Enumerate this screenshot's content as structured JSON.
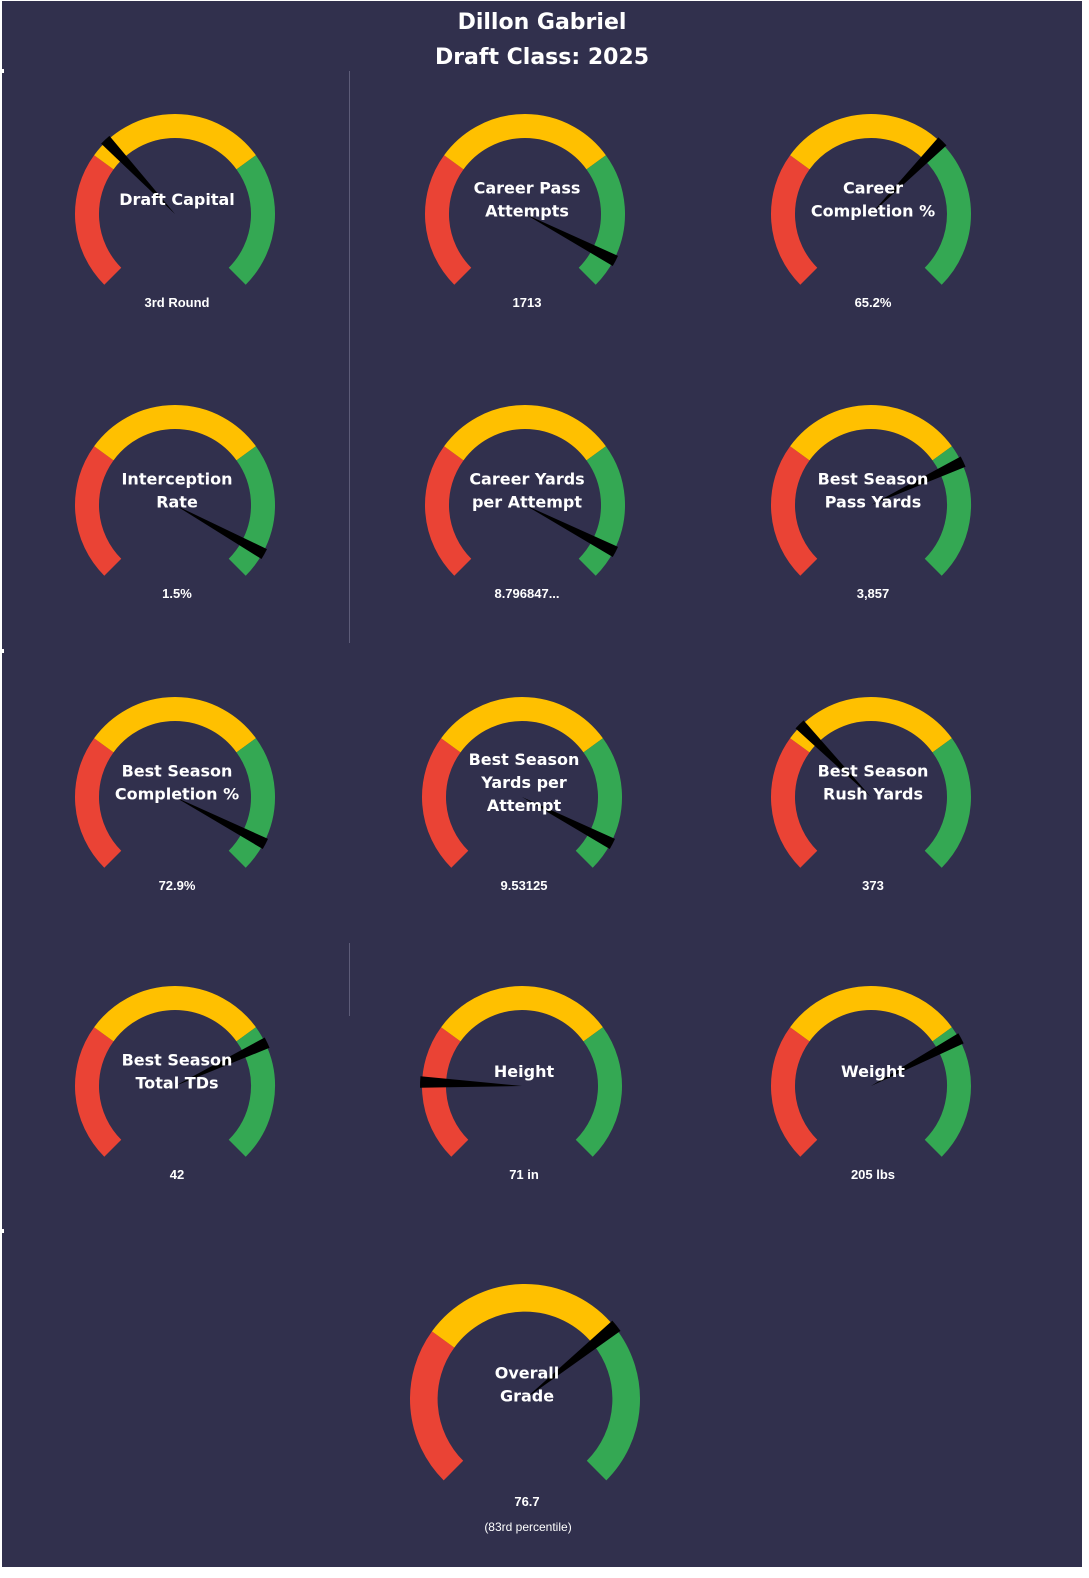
{
  "header": {
    "name": "Dillon Gabriel",
    "draft_class": "Draft Class: 2025"
  },
  "colors": {
    "background": "#31304d",
    "low": "#ea4335",
    "mid": "#ffc000",
    "high": "#34a853",
    "needle": "#000000",
    "text": "#ffffff"
  },
  "chart_data": [
    {
      "type": "gauge",
      "id": "draft-capital",
      "label_lines": [
        "Draft Capital"
      ],
      "value_label": "3rd Round",
      "value_fraction": 0.34,
      "bands": [
        0.3,
        0.7,
        1.0
      ]
    },
    {
      "type": "gauge",
      "id": "career-pass-attempts",
      "label_lines": [
        "Career Pass",
        "Attempts"
      ],
      "value_label": "1713",
      "value_fraction": 0.935,
      "bands": [
        0.3,
        0.7,
        0.935,
        1.0
      ]
    },
    {
      "type": "gauge",
      "id": "career-completion-pct",
      "label_lines": [
        "Career",
        "Completion %"
      ],
      "value_label": "65.2%",
      "value_fraction": 0.665,
      "bands": [
        0.3,
        0.665,
        1.0
      ]
    },
    {
      "type": "gauge",
      "id": "interception-rate",
      "label_lines": [
        "Interception",
        "Rate"
      ],
      "value_label": "1.5%",
      "value_fraction": 0.94,
      "bands": [
        0.3,
        0.7,
        0.94,
        1.0
      ]
    },
    {
      "type": "gauge",
      "id": "career-yards-per-attempt",
      "label_lines": [
        "Career Yards",
        "per Attempt"
      ],
      "value_label": "8.796847...",
      "value_fraction": 0.935,
      "bands": [
        0.3,
        0.7,
        0.935,
        1.0
      ]
    },
    {
      "type": "gauge",
      "id": "best-season-pass-yards",
      "label_lines": [
        "Best Season",
        "Pass Yards"
      ],
      "value_label": "3,857",
      "value_fraction": 0.74,
      "bands": [
        0.3,
        0.7,
        0.74,
        1.0
      ]
    },
    {
      "type": "gauge",
      "id": "best-season-completion-pct",
      "label_lines": [
        "Best Season",
        "Completion %"
      ],
      "value_label": "72.9%",
      "value_fraction": 0.935,
      "bands": [
        0.3,
        0.7,
        0.935,
        1.0
      ]
    },
    {
      "type": "gauge",
      "id": "best-season-yards-per-attempt",
      "label_lines": [
        "Best Season",
        "Yards per",
        "Attempt"
      ],
      "value_label": "9.53125",
      "value_fraction": 0.935,
      "bands": [
        0.3,
        0.7,
        0.935,
        1.0
      ]
    },
    {
      "type": "gauge",
      "id": "best-season-rush-yards",
      "label_lines": [
        "Best Season",
        "Rush Yards"
      ],
      "value_label": "373",
      "value_fraction": 0.335,
      "bands": [
        0.3,
        0.7,
        1.0
      ]
    },
    {
      "type": "gauge",
      "id": "best-season-total-tds",
      "label_lines": [
        "Best Season",
        "Total TDs"
      ],
      "value_label": "42",
      "value_fraction": 0.74,
      "bands": [
        0.3,
        0.7,
        0.74,
        1.0
      ]
    },
    {
      "type": "gauge",
      "id": "height",
      "label_lines": [
        "Height"
      ],
      "value_label": "71 in",
      "value_fraction": 0.175,
      "bands": [
        0.3,
        0.7,
        1.0
      ]
    },
    {
      "type": "gauge",
      "id": "weight",
      "label_lines": [
        "Weight"
      ],
      "value_label": "205 lbs",
      "value_fraction": 0.73,
      "bands": [
        0.3,
        0.7,
        0.73,
        1.0
      ]
    },
    {
      "type": "gauge",
      "id": "overall-grade",
      "label_lines": [
        "Overall",
        "Grade"
      ],
      "value_label": "76.7",
      "sub_label": "(83rd  percentile)",
      "value_fraction": 0.69,
      "bands": [
        0.3,
        0.69,
        1.0
      ]
    }
  ]
}
